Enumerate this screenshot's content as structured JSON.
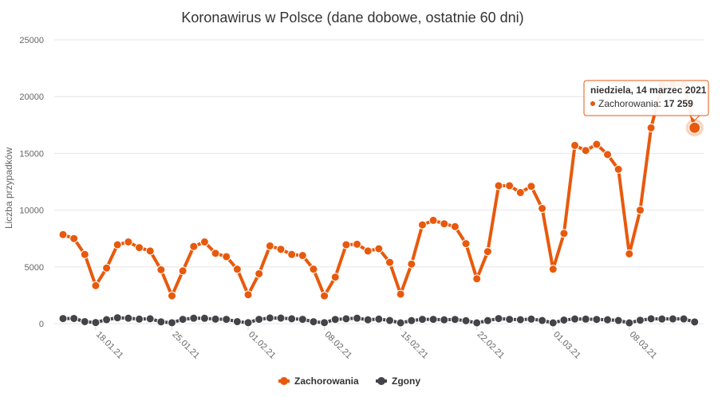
{
  "chart_data": {
    "type": "line",
    "title": "Koronawirus w Polsce (dane dobowe, ostatnie 60 dni)",
    "ylabel": "Liczba przypadków",
    "xlabel": "",
    "ylim": [
      0,
      25000
    ],
    "yticks": [
      "0",
      "5000",
      "10000",
      "15000",
      "20000",
      "25000"
    ],
    "ytick_values": [
      0,
      5000,
      10000,
      15000,
      20000,
      25000
    ],
    "xtick_labels": [
      "18.01.21",
      "25.01.21",
      "01.02.21",
      "08.02.21",
      "15.02.21",
      "22.02.21",
      "01.03.21",
      "08.03.21"
    ],
    "xtick_index": [
      3,
      10,
      17,
      24,
      31,
      38,
      45,
      52
    ],
    "grid": true,
    "legend_position": "bottom",
    "colors": {
      "Zachorowania": "#e8590c",
      "Zgony": "#434348"
    },
    "series": [
      {
        "name": "Zachorowania",
        "values": [
          7850,
          7500,
          6100,
          3350,
          4900,
          6950,
          7200,
          6700,
          6400,
          4750,
          2450,
          4650,
          6800,
          7200,
          6200,
          5900,
          4800,
          2550,
          4400,
          6850,
          6550,
          6100,
          6000,
          4800,
          2450,
          4100,
          6950,
          7000,
          6400,
          6600,
          5400,
          2600,
          5250,
          8700,
          9100,
          8800,
          8550,
          7050,
          3950,
          6350,
          12150,
          12150,
          11550,
          12100,
          10150,
          4800,
          7950,
          15700,
          15250,
          15800,
          14900,
          13600,
          6150,
          10000,
          17250,
          21000,
          21050,
          21050,
          17259
        ]
      },
      {
        "name": "Zgony",
        "values": [
          450,
          460,
          180,
          100,
          350,
          520,
          480,
          400,
          430,
          160,
          80,
          380,
          480,
          470,
          400,
          380,
          180,
          90,
          380,
          500,
          490,
          430,
          380,
          170,
          90,
          370,
          430,
          480,
          340,
          400,
          280,
          70,
          270,
          380,
          380,
          340,
          370,
          260,
          70,
          270,
          450,
          380,
          350,
          400,
          280,
          70,
          320,
          410,
          400,
          370,
          340,
          280,
          70,
          300,
          430,
          410,
          420,
          420,
          150
        ]
      }
    ],
    "tooltip": {
      "title": "niedziela, 14 marzec 2021",
      "series": "Zachorowania",
      "value": "17 259",
      "point_index": 58
    }
  }
}
